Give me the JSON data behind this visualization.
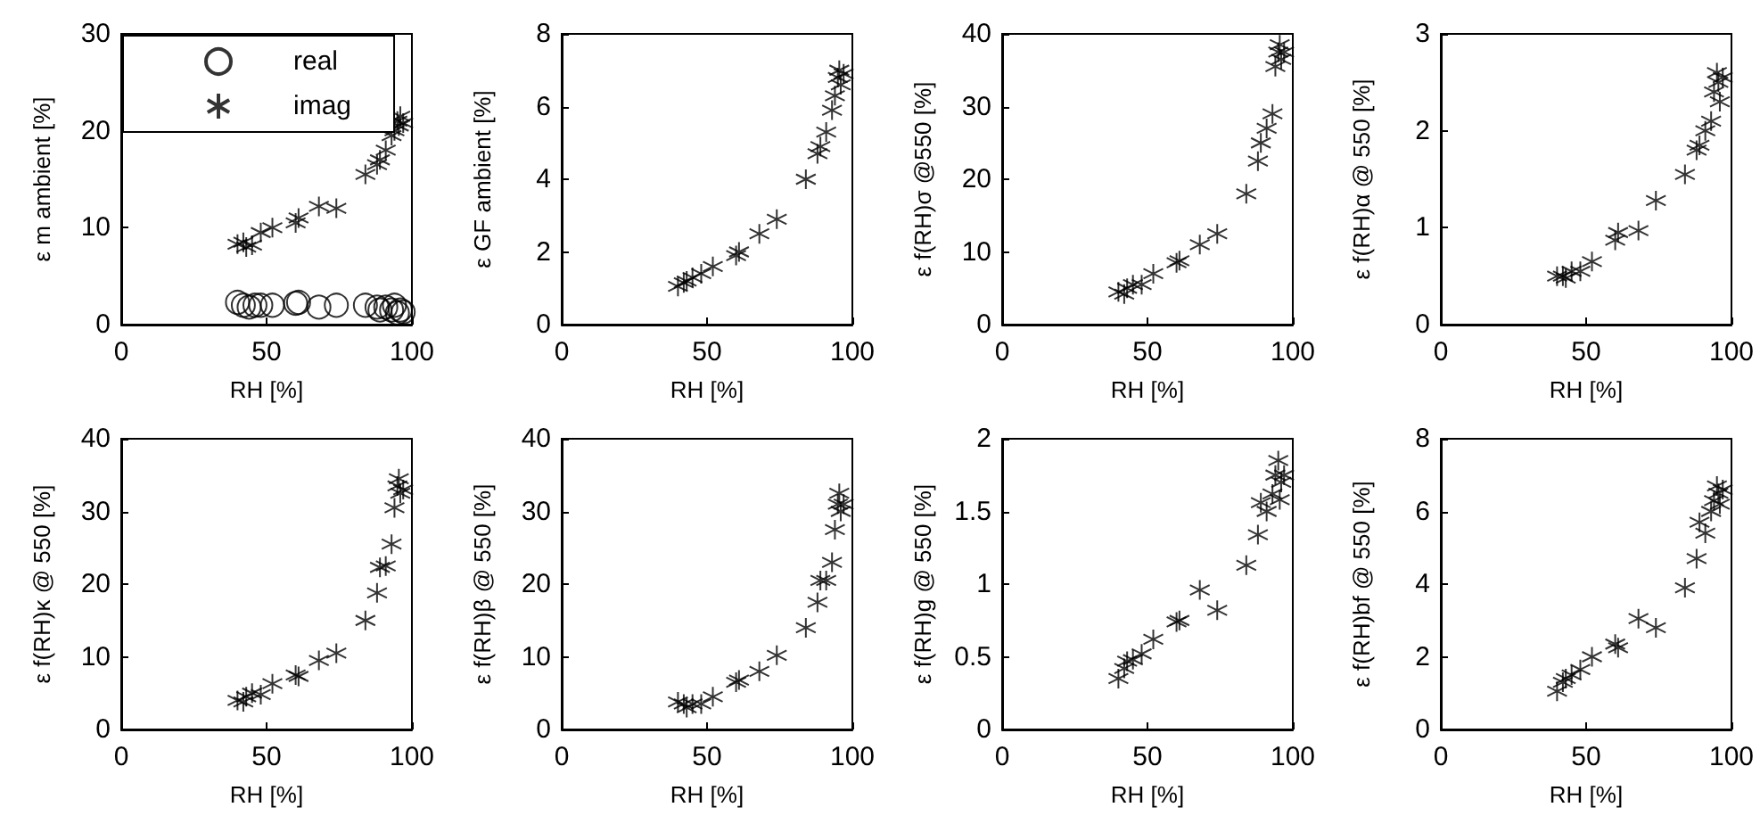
{
  "chart_data": [
    {
      "type": "scatter",
      "xlabel": "RH [%]",
      "ylabel": "ε m ambient [%]",
      "xlim": [
        0,
        100
      ],
      "xticks": [
        0,
        50,
        100
      ],
      "ylim": [
        0,
        30
      ],
      "yticks": [
        0,
        10,
        20,
        30
      ],
      "grid": false,
      "legend": "top left",
      "series": [
        {
          "name": "real",
          "color": "#000000",
          "marker": "circle",
          "x": [
            40,
            42,
            44,
            46,
            48,
            52,
            60,
            61,
            68,
            74,
            84,
            88,
            89,
            91,
            93,
            94,
            95,
            96,
            97
          ],
          "values": [
            2.3,
            2.0,
            1.8,
            2.0,
            2.0,
            2.0,
            2.2,
            2.3,
            1.8,
            2.0,
            2.0,
            1.8,
            1.5,
            1.8,
            1.5,
            2.0,
            1.2,
            1.5,
            1.3
          ]
        },
        {
          "name": "imag",
          "color": "#000000",
          "marker": "cross",
          "x": [
            40,
            42,
            43,
            45,
            48,
            52,
            60,
            61,
            68,
            74,
            84,
            88,
            89,
            91,
            93,
            94,
            95,
            95.5,
            96,
            97
          ],
          "values": [
            8.3,
            8.5,
            8.0,
            8.2,
            9.5,
            10.0,
            10.5,
            11.0,
            12.2,
            12.0,
            15.5,
            16.5,
            17.0,
            18.0,
            19.5,
            20,
            21,
            20.5,
            21.5,
            20.8
          ]
        }
      ]
    },
    {
      "type": "scatter",
      "xlabel": "RH [%]",
      "ylabel": "ε GF ambient [%]",
      "xlim": [
        0,
        100
      ],
      "xticks": [
        0,
        50,
        100
      ],
      "ylim": [
        0,
        8
      ],
      "yticks": [
        0,
        2,
        4,
        6,
        8
      ],
      "grid": false,
      "marker": "cross",
      "x": [
        40,
        42,
        43,
        45,
        48,
        52,
        60,
        61,
        68,
        74,
        84,
        88,
        89,
        91,
        93,
        94,
        95,
        95.5,
        96,
        97
      ],
      "series": [
        {
          "color": "#000000",
          "values": [
            1.05,
            1.15,
            1.2,
            1.3,
            1.4,
            1.6,
            1.9,
            2.0,
            2.5,
            2.9,
            4.0,
            4.7,
            4.9,
            5.3,
            5.9,
            6.3,
            6.8,
            7.0,
            6.6,
            6.9
          ]
        }
      ]
    },
    {
      "type": "scatter",
      "xlabel": "RH [%]",
      "ylabel": "ε f(RH)σ @550 [%]",
      "xlim": [
        0,
        100
      ],
      "xticks": [
        0,
        50,
        100
      ],
      "ylim": [
        0,
        40
      ],
      "yticks": [
        0,
        10,
        20,
        30,
        40
      ],
      "grid": false,
      "marker": "cross",
      "x": [
        40,
        42,
        43,
        45,
        48,
        52,
        60,
        61,
        68,
        74,
        84,
        88,
        89,
        91,
        93,
        94,
        95,
        95.5,
        96,
        97
      ],
      "series": [
        {
          "color": "#000000",
          "values": [
            4.5,
            4.2,
            5.0,
            5.5,
            5.5,
            7.0,
            8.5,
            8.8,
            11,
            12.5,
            18,
            22.5,
            25,
            27,
            29,
            35.5,
            37.5,
            38.5,
            36.5,
            37.5
          ]
        }
      ]
    },
    {
      "type": "scatter",
      "xlabel": "RH [%]",
      "ylabel": "ε f(RH)α @ 550 [%]",
      "xlim": [
        0,
        100
      ],
      "xticks": [
        0,
        50,
        100
      ],
      "ylim": [
        0,
        3
      ],
      "yticks": [
        0,
        1,
        2,
        3
      ],
      "grid": false,
      "marker": "cross",
      "x": [
        40,
        42,
        43,
        45,
        48,
        52,
        60,
        61,
        68,
        74,
        84,
        88,
        89,
        91,
        93,
        94,
        95,
        95.5,
        96,
        97
      ],
      "series": [
        {
          "color": "#000000",
          "values": [
            0.5,
            0.5,
            0.48,
            0.55,
            0.55,
            0.65,
            0.87,
            0.95,
            0.97,
            1.28,
            1.55,
            1.8,
            1.85,
            2.0,
            2.1,
            2.4,
            2.6,
            2.5,
            2.3,
            2.55
          ]
        }
      ]
    },
    {
      "type": "scatter",
      "xlabel": "RH [%]",
      "ylabel": "ε f(RH)κ @ 550 [%]",
      "xlim": [
        0,
        100
      ],
      "xticks": [
        0,
        50,
        100
      ],
      "ylim": [
        0,
        40
      ],
      "yticks": [
        0,
        10,
        20,
        30,
        40
      ],
      "grid": false,
      "marker": "cross",
      "x": [
        40,
        42,
        43,
        45,
        48,
        52,
        60,
        61,
        68,
        74,
        84,
        88,
        89,
        91,
        93,
        94,
        95,
        95.5,
        96,
        97
      ],
      "series": [
        {
          "color": "#000000",
          "values": [
            4.0,
            3.8,
            4.5,
            5.0,
            4.8,
            6.3,
            7.5,
            7.3,
            9.5,
            10.5,
            15,
            18.8,
            22.3,
            22.5,
            25.5,
            30.5,
            33.5,
            34.5,
            32.5,
            33
          ]
        }
      ]
    },
    {
      "type": "scatter",
      "xlabel": "RH [%]",
      "ylabel": "ε f(RH)β @ 550 [%]",
      "xlim": [
        0,
        100
      ],
      "xticks": [
        0,
        50,
        100
      ],
      "ylim": [
        0,
        40
      ],
      "yticks": [
        0,
        10,
        20,
        30,
        40
      ],
      "grid": false,
      "marker": "cross",
      "x": [
        40,
        42,
        43,
        45,
        48,
        52,
        60,
        61,
        68,
        74,
        84,
        88,
        89,
        91,
        93,
        94,
        95,
        95.5,
        96,
        97
      ],
      "series": [
        {
          "color": "#000000",
          "values": [
            3.8,
            3.5,
            3.0,
            3.5,
            3.5,
            4.5,
            6.5,
            6.8,
            8,
            10.2,
            14,
            17.5,
            20.5,
            20.5,
            23,
            27.5,
            31,
            32.5,
            30,
            31
          ]
        }
      ]
    },
    {
      "type": "scatter",
      "xlabel": "RH [%]",
      "ylabel": "ε f(RH)g @ 550 [%]",
      "xlim": [
        0,
        100
      ],
      "xticks": [
        0,
        50,
        100
      ],
      "ylim": [
        0,
        2
      ],
      "yticks": [
        0,
        0.5,
        1,
        1.5,
        2
      ],
      "grid": false,
      "marker": "cross",
      "x": [
        40,
        42,
        43,
        45,
        48,
        52,
        60,
        61,
        68,
        74,
        84,
        88,
        89,
        91,
        93,
        94,
        95,
        95.5,
        96,
        97
      ],
      "series": [
        {
          "color": "#000000",
          "values": [
            0.35,
            0.42,
            0.47,
            0.48,
            0.52,
            0.62,
            0.74,
            0.75,
            0.96,
            0.82,
            1.13,
            1.34,
            1.56,
            1.5,
            1.62,
            1.75,
            1.85,
            1.58,
            1.7,
            1.75
          ]
        }
      ]
    },
    {
      "type": "scatter",
      "xlabel": "RH [%]",
      "ylabel": "ε f(RH)bf @ 550 [%]",
      "xlim": [
        0,
        100
      ],
      "xticks": [
        0,
        50,
        100
      ],
      "ylim": [
        0,
        8
      ],
      "yticks": [
        0,
        2,
        4,
        6,
        8
      ],
      "grid": false,
      "marker": "cross",
      "x": [
        40,
        42,
        43,
        45,
        48,
        52,
        60,
        61,
        68,
        74,
        84,
        88,
        89,
        91,
        93,
        94,
        95,
        95.5,
        96,
        97
      ],
      "series": [
        {
          "color": "#000000",
          "values": [
            1.05,
            1.3,
            1.4,
            1.5,
            1.65,
            2.0,
            2.35,
            2.25,
            3.05,
            2.8,
            3.9,
            4.7,
            5.7,
            5.4,
            6.0,
            6.3,
            6.7,
            6.5,
            6.2,
            6.6
          ]
        }
      ]
    }
  ]
}
